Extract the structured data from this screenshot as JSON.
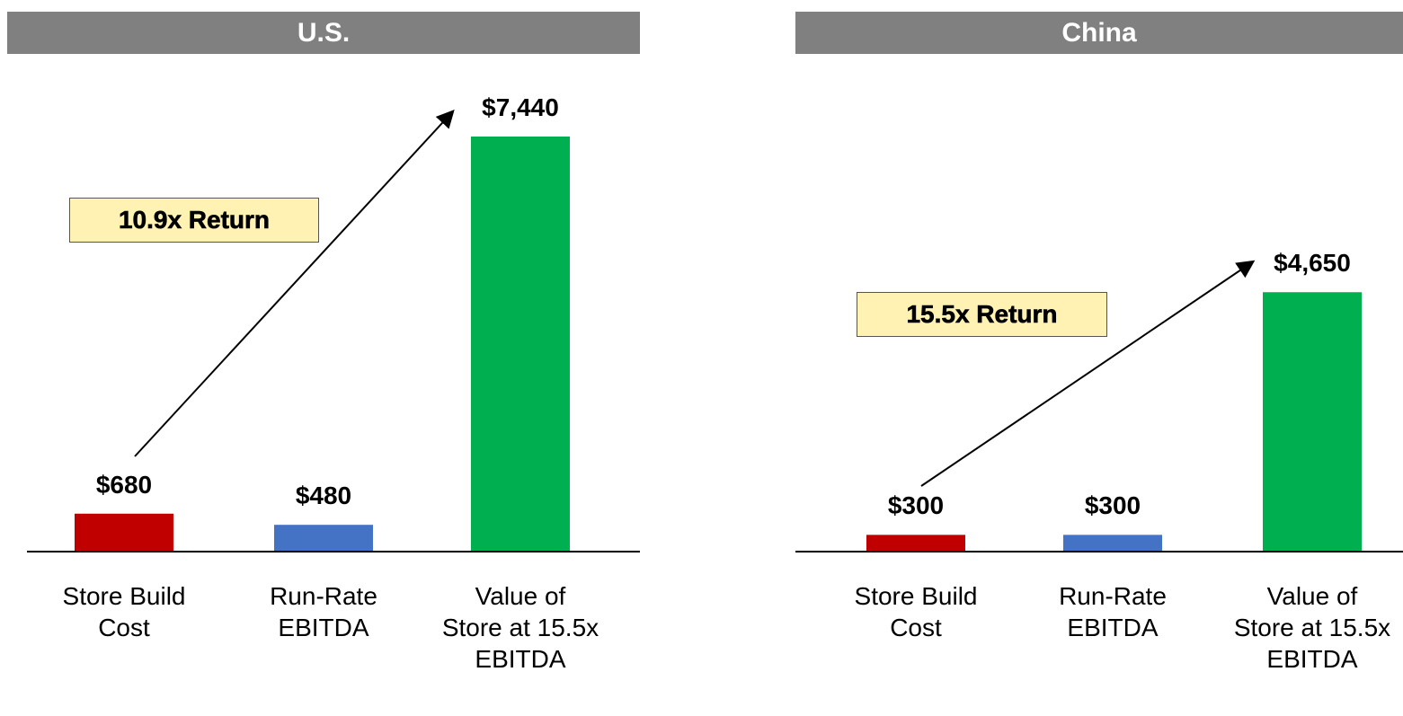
{
  "chart_data": [
    {
      "type": "bar",
      "title": "U.S.",
      "categories": [
        "Store Build Cost",
        "Run-Rate EBITDA",
        "Value of Store at 15.5x EBITDA"
      ],
      "values": [
        680,
        480,
        7440
      ],
      "value_labels": [
        "$680",
        "$480",
        "$7,440"
      ],
      "colors": [
        "#c00000",
        "#4472c4",
        "#00b050"
      ],
      "annotation": "10.9x Return"
    },
    {
      "type": "bar",
      "title": "China",
      "categories": [
        "Store Build Cost",
        "Run-Rate EBITDA",
        "Value of Store at 15.5x EBITDA"
      ],
      "values": [
        300,
        300,
        4650
      ],
      "value_labels": [
        "$300",
        "$300",
        "$4,650"
      ],
      "colors": [
        "#c00000",
        "#4472c4",
        "#00b050"
      ],
      "annotation": "15.5x Return"
    }
  ]
}
